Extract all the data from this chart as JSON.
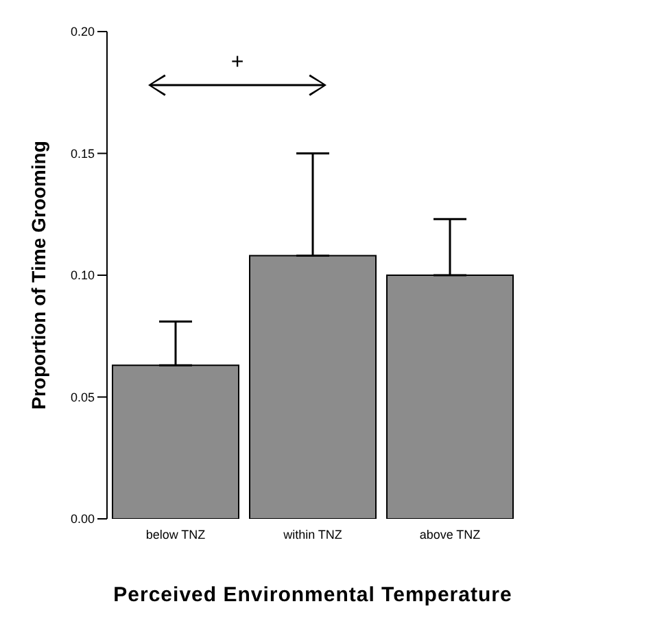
{
  "chart_data": {
    "type": "bar",
    "xlabel": "Perceived Environmental Temperature",
    "ylabel": "Proportion of Time Grooming",
    "categories": [
      "below TNZ",
      "within TNZ",
      "above TNZ"
    ],
    "values": [
      0.063,
      0.108,
      0.1
    ],
    "errors": [
      [
        0.063,
        0.081
      ],
      [
        0.108,
        0.15
      ],
      [
        0.1,
        0.123
      ]
    ],
    "color": "#8c8c8c",
    "ylim": [
      0,
      0.2
    ],
    "yticks": [
      {
        "value": 0,
        "label": "0.00"
      },
      0.05,
      {
        "value": 0.1,
        "label": "0.10"
      },
      0.15,
      {
        "value": 0.2,
        "label": "0.20"
      }
    ],
    "annotations": [
      "+"
    ],
    "grid": false,
    "legend": false
  }
}
